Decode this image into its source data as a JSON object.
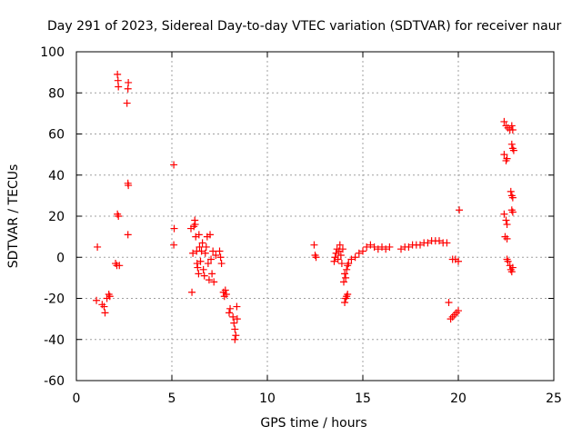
{
  "chart_data": {
    "type": "scatter",
    "title": "Day 291 of 2023, Sidereal Day-to-day VTEC variation (SDTVAR) for receiver naur",
    "xlabel": "GPS time / hours",
    "ylabel": "SDTVAR / TECUs",
    "xlim": [
      0,
      25
    ],
    "ylim": [
      -60,
      100
    ],
    "xticks": [
      0,
      5,
      10,
      15,
      20,
      25
    ],
    "yticks": [
      -60,
      -40,
      -20,
      0,
      20,
      40,
      60,
      80,
      100
    ],
    "grid": true,
    "marker": "+",
    "color": "#ff0000",
    "series": [
      {
        "name": "SDTVAR",
        "points": [
          [
            1.05,
            -21
          ],
          [
            1.1,
            5
          ],
          [
            1.35,
            -23
          ],
          [
            1.45,
            -24
          ],
          [
            1.5,
            -27
          ],
          [
            1.6,
            -20
          ],
          [
            1.7,
            -18
          ],
          [
            1.75,
            -19
          ],
          [
            2.05,
            -3
          ],
          [
            2.12,
            -4
          ],
          [
            2.15,
            89
          ],
          [
            2.18,
            86
          ],
          [
            2.2,
            83
          ],
          [
            2.15,
            21
          ],
          [
            2.2,
            20
          ],
          [
            2.25,
            -4
          ],
          [
            2.65,
            75
          ],
          [
            2.7,
            82
          ],
          [
            2.72,
            85
          ],
          [
            2.7,
            36
          ],
          [
            2.72,
            35
          ],
          [
            2.7,
            11
          ],
          [
            5.1,
            45
          ],
          [
            5.12,
            14
          ],
          [
            5.1,
            6
          ],
          [
            6.0,
            14
          ],
          [
            6.05,
            -17
          ],
          [
            6.1,
            2
          ],
          [
            6.15,
            15
          ],
          [
            6.2,
            18
          ],
          [
            6.22,
            16
          ],
          [
            6.25,
            10
          ],
          [
            6.3,
            3
          ],
          [
            6.32,
            -3
          ],
          [
            6.35,
            -5
          ],
          [
            6.4,
            -8
          ],
          [
            6.42,
            11
          ],
          [
            6.45,
            5
          ],
          [
            6.5,
            -2
          ],
          [
            6.55,
            3
          ],
          [
            6.6,
            7
          ],
          [
            6.65,
            -6
          ],
          [
            6.7,
            -9
          ],
          [
            6.75,
            2
          ],
          [
            6.8,
            5
          ],
          [
            6.85,
            10
          ],
          [
            6.9,
            -3
          ],
          [
            6.95,
            -11
          ],
          [
            7.0,
            11
          ],
          [
            7.05,
            -1
          ],
          [
            7.1,
            -8
          ],
          [
            7.15,
            3
          ],
          [
            7.2,
            -12
          ],
          [
            7.3,
            1
          ],
          [
            7.5,
            3
          ],
          [
            7.55,
            0
          ],
          [
            7.6,
            -3
          ],
          [
            7.7,
            -17
          ],
          [
            7.75,
            -19
          ],
          [
            7.8,
            -16
          ],
          [
            7.85,
            -18
          ],
          [
            8.0,
            -27
          ],
          [
            8.05,
            -25
          ],
          [
            8.2,
            -29
          ],
          [
            8.25,
            -32
          ],
          [
            8.3,
            -35
          ],
          [
            8.3,
            -40
          ],
          [
            8.35,
            -38
          ],
          [
            8.4,
            -24
          ],
          [
            8.42,
            -30
          ],
          [
            12.45,
            6
          ],
          [
            12.5,
            1
          ],
          [
            12.55,
            0
          ],
          [
            13.5,
            -2
          ],
          [
            13.55,
            0
          ],
          [
            13.6,
            2
          ],
          [
            13.65,
            4
          ],
          [
            13.7,
            -1
          ],
          [
            13.75,
            3
          ],
          [
            13.8,
            6
          ],
          [
            13.85,
            1
          ],
          [
            13.9,
            -3
          ],
          [
            13.95,
            4
          ],
          [
            14.0,
            -12
          ],
          [
            14.05,
            -8
          ],
          [
            14.1,
            -10
          ],
          [
            14.15,
            -6
          ],
          [
            14.2,
            -4
          ],
          [
            14.25,
            -3
          ],
          [
            14.05,
            -22
          ],
          [
            14.1,
            -20
          ],
          [
            14.15,
            -19
          ],
          [
            14.2,
            -18
          ],
          [
            14.4,
            -1
          ],
          [
            14.6,
            0
          ],
          [
            14.8,
            2
          ],
          [
            15.0,
            3
          ],
          [
            15.2,
            5
          ],
          [
            15.4,
            6
          ],
          [
            15.6,
            5
          ],
          [
            15.8,
            4
          ],
          [
            16.0,
            5
          ],
          [
            16.2,
            4
          ],
          [
            16.4,
            5
          ],
          [
            17.0,
            4
          ],
          [
            17.2,
            5
          ],
          [
            17.4,
            5
          ],
          [
            17.6,
            6
          ],
          [
            17.8,
            6
          ],
          [
            18.0,
            6
          ],
          [
            18.2,
            7
          ],
          [
            18.4,
            7
          ],
          [
            18.6,
            8
          ],
          [
            18.8,
            8
          ],
          [
            19.0,
            8
          ],
          [
            19.2,
            7
          ],
          [
            19.4,
            7
          ],
          [
            19.5,
            -22
          ],
          [
            19.6,
            -30
          ],
          [
            19.7,
            -29
          ],
          [
            19.8,
            -28
          ],
          [
            19.9,
            -27
          ],
          [
            20.0,
            -26
          ],
          [
            19.7,
            -1
          ],
          [
            19.85,
            -1
          ],
          [
            20.0,
            -2
          ],
          [
            20.05,
            23
          ],
          [
            22.4,
            66
          ],
          [
            22.5,
            64
          ],
          [
            22.6,
            63
          ],
          [
            22.7,
            62
          ],
          [
            22.8,
            64
          ],
          [
            22.85,
            62
          ],
          [
            22.4,
            50
          ],
          [
            22.5,
            47
          ],
          [
            22.55,
            48
          ],
          [
            22.8,
            55
          ],
          [
            22.85,
            53
          ],
          [
            22.9,
            52
          ],
          [
            22.75,
            32
          ],
          [
            22.8,
            30
          ],
          [
            22.85,
            29
          ],
          [
            22.8,
            23
          ],
          [
            22.85,
            22
          ],
          [
            22.4,
            21
          ],
          [
            22.5,
            18
          ],
          [
            22.55,
            16
          ],
          [
            22.45,
            10
          ],
          [
            22.55,
            9
          ],
          [
            22.55,
            -1
          ],
          [
            22.6,
            -2
          ],
          [
            22.7,
            -4
          ],
          [
            22.75,
            -6
          ],
          [
            22.8,
            -7
          ],
          [
            22.85,
            -5
          ]
        ]
      }
    ]
  }
}
